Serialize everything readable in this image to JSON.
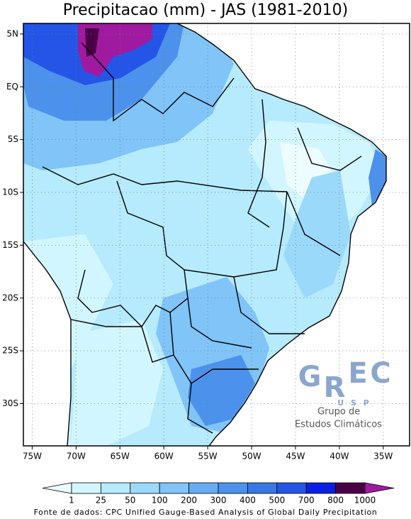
{
  "title": "Precipitacao (mm) - JAS (1981-2010)",
  "map": {
    "lonlim": [
      -76,
      -32
    ],
    "latlim": [
      -34,
      6
    ],
    "lon_ticks": [
      {
        "value": -75,
        "label": "75W"
      },
      {
        "value": -70,
        "label": "70W"
      },
      {
        "value": -65,
        "label": "65W"
      },
      {
        "value": -60,
        "label": "60W"
      },
      {
        "value": -55,
        "label": "55W"
      },
      {
        "value": -50,
        "label": "50W"
      },
      {
        "value": -45,
        "label": "45W"
      },
      {
        "value": -40,
        "label": "40W"
      },
      {
        "value": -35,
        "label": "35W"
      }
    ],
    "lat_ticks": [
      {
        "value": 5,
        "label": "5N"
      },
      {
        "value": 0,
        "label": "EQ"
      },
      {
        "value": -5,
        "label": "5S"
      },
      {
        "value": -10,
        "label": "10S"
      },
      {
        "value": -15,
        "label": "15S"
      },
      {
        "value": -20,
        "label": "20S"
      },
      {
        "value": -25,
        "label": "25S"
      },
      {
        "value": -30,
        "label": "30S"
      }
    ]
  },
  "colorbar": {
    "levels": [
      1,
      25,
      50,
      100,
      200,
      300,
      400,
      500,
      700,
      800,
      1000
    ],
    "colors": [
      "#ecfcff",
      "#d2f6ff",
      "#b6eafd",
      "#9bd9fb",
      "#80c4f8",
      "#66acf2",
      "#4c92ec",
      "#3a76e4",
      "#2455e6",
      "#0a1ee6",
      "#4a0046",
      "#a01aa0"
    ]
  },
  "logo": {
    "letters": [
      "G",
      "R",
      "E",
      "C"
    ],
    "subtitle": "U S P",
    "lines": [
      "Grupo de",
      "Estudos Climáticos"
    ]
  },
  "source": "Fonte de dados: CPC Unified Gauge-Based Analysis of Global Daily Precipitation"
}
